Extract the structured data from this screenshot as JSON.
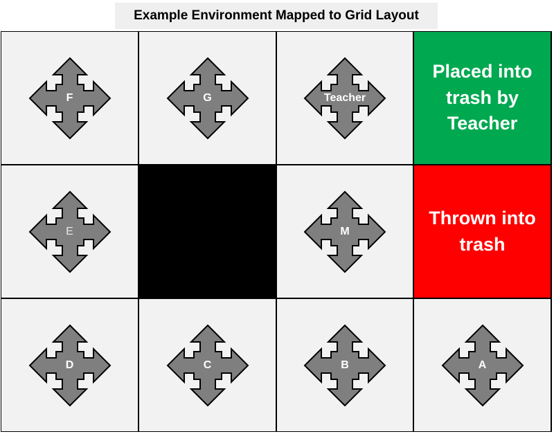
{
  "title": "Example Environment Mapped to Grid Layout",
  "colors": {
    "cell_background": "#f2f2f2",
    "wall": "#000000",
    "green_zone": "#00a850",
    "red_zone": "#ff0000",
    "arrow_fill": "#7f7f7f",
    "arrow_stroke": "#000000"
  },
  "grid": {
    "rows": [
      [
        {
          "type": "agent",
          "label": "F",
          "icon": "move-arrows-icon"
        },
        {
          "type": "agent",
          "label": "G",
          "icon": "move-arrows-icon"
        },
        {
          "type": "agent",
          "label": "Teacher",
          "icon": "move-arrows-icon"
        },
        {
          "type": "zone",
          "color": "green",
          "text": "Placed into\ntrash by\nTeacher"
        }
      ],
      [
        {
          "type": "agent",
          "label": "E",
          "icon": "move-arrows-icon"
        },
        {
          "type": "wall"
        },
        {
          "type": "agent",
          "label": "M",
          "icon": "move-arrows-icon"
        },
        {
          "type": "zone",
          "color": "red",
          "text": "Thrown into\ntrash"
        }
      ],
      [
        {
          "type": "agent",
          "label": "D",
          "icon": "move-arrows-icon"
        },
        {
          "type": "agent",
          "label": "C",
          "icon": "move-arrows-icon"
        },
        {
          "type": "agent",
          "label": "B",
          "icon": "move-arrows-icon"
        },
        {
          "type": "agent",
          "label": "A",
          "icon": "move-arrows-icon"
        }
      ]
    ]
  }
}
